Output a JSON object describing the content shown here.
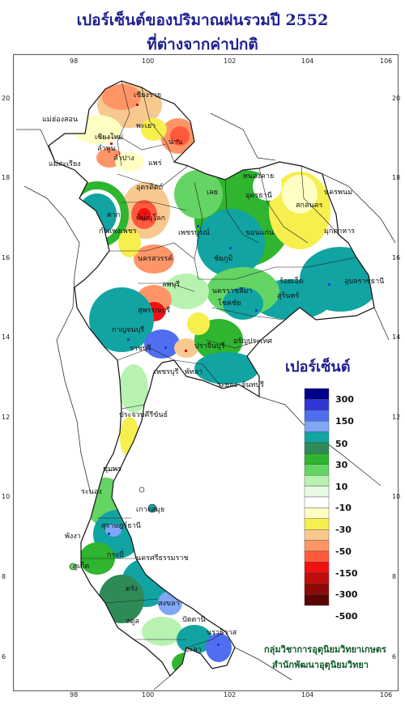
{
  "title": {
    "line1": "เปอร์เซ็นต์ของปริมาณฝนรวมปี  2552",
    "line2": "ที่ต่างจากค่าปกติ"
  },
  "axes": {
    "top_ticks": [
      "98",
      "100",
      "102",
      "104",
      "106"
    ],
    "bottom_ticks": [
      "98",
      "100",
      "102",
      "104",
      "106"
    ],
    "left_ticks": [
      "20",
      "18",
      "16",
      "14",
      "12",
      "10",
      "8",
      "6"
    ],
    "right_ticks": [
      "20",
      "18",
      "16",
      "14",
      "12",
      "10",
      "8",
      "6"
    ]
  },
  "legend": {
    "title": "เปอร์เซ็นต์",
    "swatches": [
      {
        "color": "#00008b"
      },
      {
        "color": "#2f37d6"
      },
      {
        "color": "#4f6ef0"
      },
      {
        "color": "#7fa7f5"
      },
      {
        "color": "#12a3a3"
      },
      {
        "color": "#2e8b57"
      },
      {
        "color": "#2fb52f"
      },
      {
        "color": "#64d464"
      },
      {
        "color": "#b8f2b0"
      },
      {
        "color": "#e7fbe3"
      },
      {
        "color": "#ffffff"
      },
      {
        "color": "#ffffc4"
      },
      {
        "color": "#f6ef4d"
      },
      {
        "color": "#f8c98f"
      },
      {
        "color": "#ff9566"
      },
      {
        "color": "#ff5a3c"
      },
      {
        "color": "#f01111"
      },
      {
        "color": "#c00d0d"
      },
      {
        "color": "#8f0808"
      },
      {
        "color": "#5a0404"
      }
    ],
    "labels": [
      "300",
      "150",
      "50",
      "30",
      "10",
      "-10",
      "-30",
      "-50",
      "-150",
      "-300",
      "-500"
    ]
  },
  "provinces": [
    {
      "name": "เชียงราย"
    },
    {
      "name": "แม่ฮ่องสอน"
    },
    {
      "name": "พะเยา"
    },
    {
      "name": "เชียงใหม่"
    },
    {
      "name": "น่าน"
    },
    {
      "name": "ลำพูน"
    },
    {
      "name": "ลำปาง"
    },
    {
      "name": "แพร่"
    },
    {
      "name": "แม่สะเรียง"
    },
    {
      "name": "อุตรดิตถ์"
    },
    {
      "name": "ตาก"
    },
    {
      "name": "พิษณุโลก"
    },
    {
      "name": "เลย"
    },
    {
      "name": "หนองคาย"
    },
    {
      "name": "อุดรธานี"
    },
    {
      "name": "สกลนคร"
    },
    {
      "name": "นครพนม"
    },
    {
      "name": "มุกดาหาร"
    },
    {
      "name": "กำแพงเพชร"
    },
    {
      "name": "เพชรบูรณ์"
    },
    {
      "name": "ขอนแก่น"
    },
    {
      "name": "นครสวรรค์"
    },
    {
      "name": "ชัยภูมิ"
    },
    {
      "name": "ลพบุรี"
    },
    {
      "name": "นครราชสีมา"
    },
    {
      "name": "ร้อยเอ็ด"
    },
    {
      "name": "อุบลราชธานี"
    },
    {
      "name": "สุรินทร์"
    },
    {
      "name": "สุพรรณบุรี"
    },
    {
      "name": "โชคชัย"
    },
    {
      "name": "กาญจนบุรี"
    },
    {
      "name": "อรัญประเทศ"
    },
    {
      "name": "ราชบุรี"
    },
    {
      "name": "ปราจีนบุรี"
    },
    {
      "name": "เพชรบุรี"
    },
    {
      "name": "พัทยา"
    },
    {
      "name": "ระยอง"
    },
    {
      "name": "จันทบุรี"
    },
    {
      "name": "ประจวบคีรีขันธ์"
    },
    {
      "name": "ชุมพร"
    },
    {
      "name": "ระนอง"
    },
    {
      "name": "เกาะสมุย"
    },
    {
      "name": "สุราษฎร์ธานี"
    },
    {
      "name": "พังงา"
    },
    {
      "name": "นครศรีธรรมราช"
    },
    {
      "name": "ภูเก็ต"
    },
    {
      "name": "กระบี่"
    },
    {
      "name": "ตรัง"
    },
    {
      "name": "สงขลา"
    },
    {
      "name": "ปัตตานี"
    },
    {
      "name": "นราธิวาส"
    },
    {
      "name": "สตูล"
    },
    {
      "name": "ยะลา"
    }
  ],
  "credits": {
    "line1": "กลุ่มวิชาการอุตุนิยมวิทยาเกษตร",
    "line2": "สำนักพัฒนาอุตุนิยมวิทยา"
  }
}
